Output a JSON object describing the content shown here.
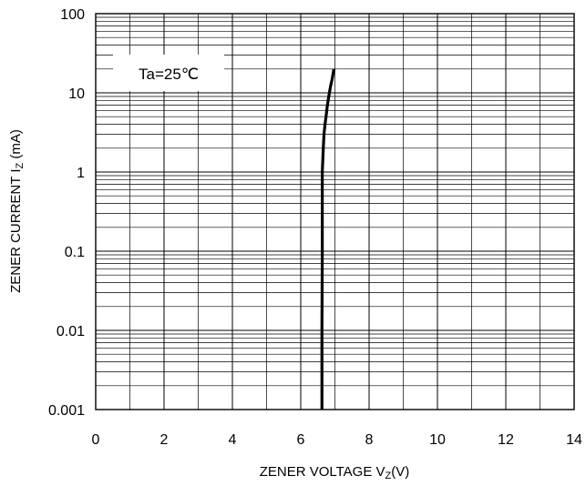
{
  "chart_data": {
    "type": "line",
    "title": "",
    "xlabel": {
      "main": "ZENER VOLTAGE V",
      "sub": "Z",
      "unit": "(V)"
    },
    "ylabel": {
      "main": "ZENER CURRENT  I",
      "sub": "Z",
      "unit": " (mA)"
    },
    "xlim": [
      0,
      14
    ],
    "ylim": [
      0.001,
      100
    ],
    "yscale": "log",
    "grid": true,
    "x_ticks": [
      "0",
      "2",
      "4",
      "6",
      "8",
      "10",
      "12",
      "14"
    ],
    "y_ticks": [
      "0.001",
      "0.01",
      "0.1",
      "1",
      "10",
      "100"
    ],
    "annotation": "Ta=25℃",
    "series": [
      {
        "x": [
          6.62,
          6.62,
          6.63,
          6.63,
          6.66,
          6.68,
          6.71,
          6.74,
          6.78,
          6.82,
          6.87,
          6.92,
          6.97
        ],
        "y": [
          0.001,
          0.01,
          0.1,
          1,
          2,
          3,
          4,
          5,
          7,
          9,
          12,
          15,
          20
        ],
        "color": "#000000"
      }
    ]
  }
}
